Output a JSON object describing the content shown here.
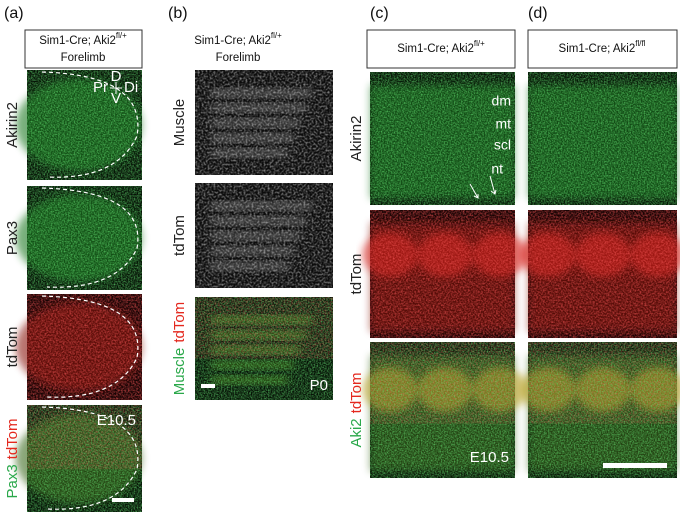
{
  "panels": [
    {
      "label": "(a)",
      "header": {
        "prefix": "Sim1-Cre; Aki2",
        "sup": "fl/+",
        "line2": "Forelimb"
      },
      "rows": [
        {
          "labels": [
            {
              "text": "Akirin2",
              "color": "#222222"
            }
          ],
          "notes": [
            "D",
            "Pr",
            "Di",
            "V"
          ]
        },
        {
          "labels": [
            {
              "text": "Pax3",
              "color": "#222222"
            }
          ]
        },
        {
          "labels": [
            {
              "text": "tdTom",
              "color": "#222222"
            }
          ]
        },
        {
          "labels": [
            {
              "text": "Pax3",
              "color": "#2aa84a"
            },
            {
              "text": "tdTom",
              "color": "#e4281e"
            }
          ],
          "notes": [
            "E10.5"
          ]
        }
      ]
    },
    {
      "label": "(b)",
      "header": {
        "prefix": "Sim1-Cre; Aki2",
        "sup": "fl/+",
        "line2": "Forelimb"
      },
      "rows": [
        {
          "labels": [
            {
              "text": "Muscle",
              "color": "#222222"
            }
          ]
        },
        {
          "labels": [
            {
              "text": "tdTom",
              "color": "#222222"
            }
          ]
        },
        {
          "labels": [
            {
              "text": "Muscle",
              "color": "#2aa84a"
            },
            {
              "text": "tdTom",
              "color": "#e4281e"
            }
          ],
          "notes": [
            "P0"
          ]
        }
      ]
    },
    {
      "label": "(c)",
      "header": {
        "prefix": "Sim1-Cre; Aki2",
        "sup": "fl/+"
      },
      "rows": [
        {
          "labels": [
            {
              "text": "Akirin2",
              "color": "#222222"
            }
          ],
          "notes": [
            "dm",
            "mt",
            "scl",
            "nt"
          ]
        },
        {
          "labels": [
            {
              "text": "tdTom",
              "color": "#222222"
            }
          ]
        },
        {
          "labels": [
            {
              "text": "Aki2",
              "color": "#2aa84a"
            },
            {
              "text": "tdTom",
              "color": "#e4281e"
            }
          ],
          "notes": [
            "E10.5"
          ]
        }
      ]
    },
    {
      "label": "(d)",
      "header": {
        "prefix": "Sim1-Cre; Aki2",
        "sup": "fl/fl"
      }
    }
  ]
}
